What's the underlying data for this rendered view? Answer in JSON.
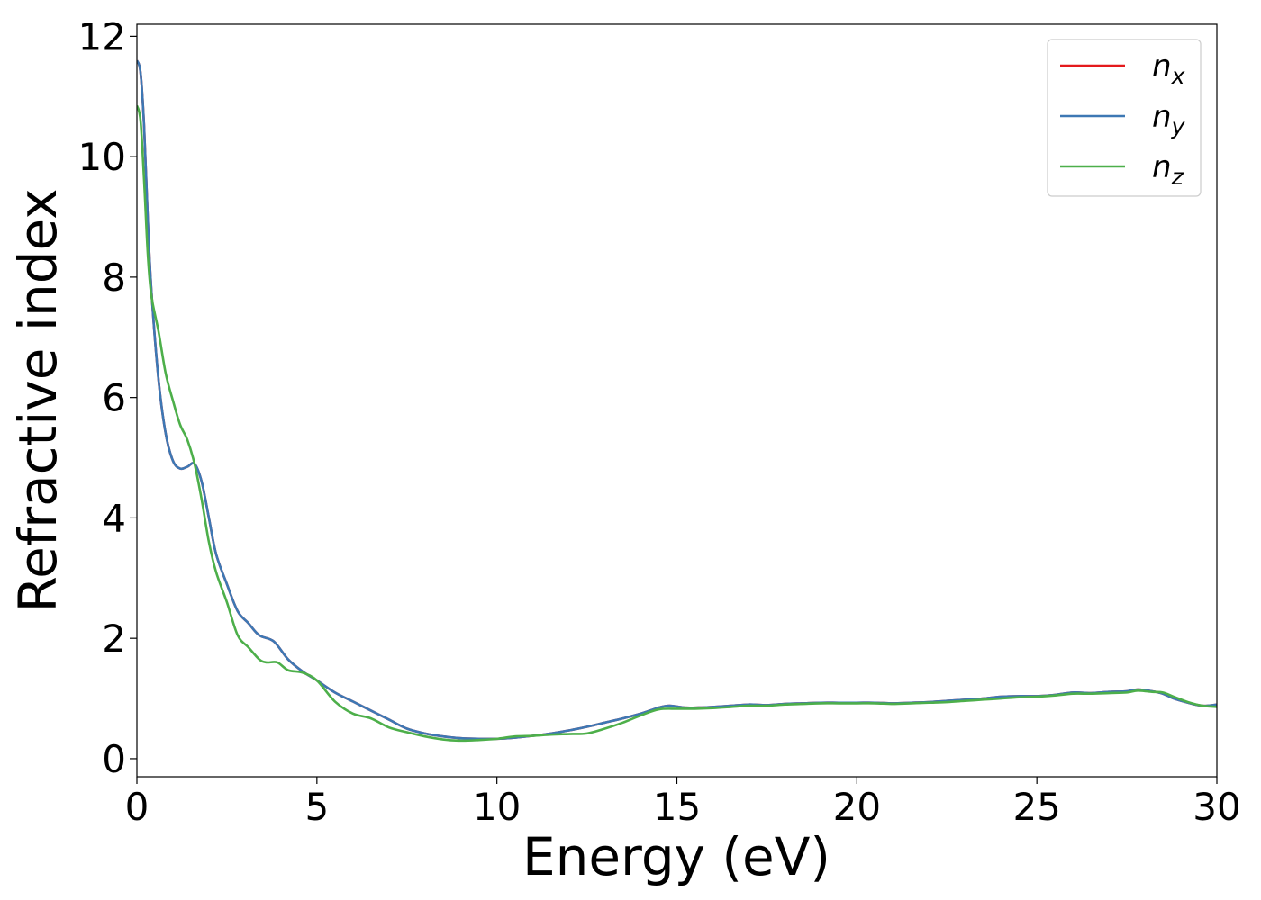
{
  "chart_data": {
    "type": "line",
    "title": "",
    "xlabel": "Energy (eV)",
    "ylabel": "Refractive index",
    "xlim": [
      0,
      30
    ],
    "ylim": [
      -0.3,
      12.2
    ],
    "xticks": [
      0,
      5,
      10,
      15,
      20,
      25,
      30
    ],
    "yticks": [
      0,
      2,
      4,
      6,
      8,
      10,
      12
    ],
    "grid": false,
    "legend_position": "top-right",
    "legend": [
      {
        "base": "n",
        "sub": "x",
        "color": "#e41a1c"
      },
      {
        "base": "n",
        "sub": "y",
        "color": "#3d78b4"
      },
      {
        "base": "n",
        "sub": "z",
        "color": "#4daf4a"
      }
    ],
    "series": [
      {
        "name": "n_x",
        "color": "#e41a1c",
        "x": [
          0,
          0.1,
          0.2,
          0.3,
          0.4,
          0.6,
          0.8,
          1.0,
          1.2,
          1.4,
          1.6,
          1.8,
          2.0,
          2.2,
          2.5,
          2.8,
          3.1,
          3.4,
          3.8,
          4.2,
          4.6,
          5.0,
          5.5,
          6.0,
          6.5,
          7.0,
          7.5,
          8.0,
          8.5,
          9.0,
          9.5,
          10.0,
          10.5,
          11.0,
          11.5,
          12.0,
          12.5,
          13.0,
          13.5,
          14.0,
          14.5,
          14.8,
          15.2,
          15.6,
          16.0,
          16.5,
          17.0,
          17.5,
          18.0,
          18.5,
          19.0,
          19.5,
          20.0,
          20.5,
          21.0,
          21.5,
          22.0,
          22.5,
          23.0,
          23.5,
          24.0,
          24.5,
          25.0,
          25.5,
          26.0,
          26.5,
          27.0,
          27.5,
          27.8,
          28.2,
          28.5,
          28.8,
          29.2,
          29.6,
          30.0
        ],
        "y": [
          11.6,
          11.4,
          10.5,
          9.0,
          7.8,
          6.3,
          5.4,
          4.95,
          4.82,
          4.85,
          4.9,
          4.6,
          4.0,
          3.4,
          2.9,
          2.45,
          2.25,
          2.05,
          1.95,
          1.65,
          1.45,
          1.3,
          1.1,
          0.95,
          0.8,
          0.65,
          0.5,
          0.42,
          0.37,
          0.34,
          0.33,
          0.33,
          0.35,
          0.38,
          0.42,
          0.47,
          0.53,
          0.6,
          0.67,
          0.75,
          0.85,
          0.88,
          0.85,
          0.85,
          0.86,
          0.88,
          0.9,
          0.89,
          0.91,
          0.92,
          0.93,
          0.93,
          0.93,
          0.93,
          0.92,
          0.93,
          0.94,
          0.96,
          0.98,
          1.0,
          1.03,
          1.04,
          1.04,
          1.06,
          1.1,
          1.09,
          1.11,
          1.12,
          1.15,
          1.12,
          1.08,
          1.0,
          0.93,
          0.88,
          0.9
        ]
      },
      {
        "name": "n_y",
        "color": "#3d78b4",
        "x": [
          0,
          0.1,
          0.2,
          0.3,
          0.4,
          0.6,
          0.8,
          1.0,
          1.2,
          1.4,
          1.6,
          1.8,
          2.0,
          2.2,
          2.5,
          2.8,
          3.1,
          3.4,
          3.8,
          4.2,
          4.6,
          5.0,
          5.5,
          6.0,
          6.5,
          7.0,
          7.5,
          8.0,
          8.5,
          9.0,
          9.5,
          10.0,
          10.5,
          11.0,
          11.5,
          12.0,
          12.5,
          13.0,
          13.5,
          14.0,
          14.5,
          14.8,
          15.2,
          15.6,
          16.0,
          16.5,
          17.0,
          17.5,
          18.0,
          18.5,
          19.0,
          19.5,
          20.0,
          20.5,
          21.0,
          21.5,
          22.0,
          22.5,
          23.0,
          23.5,
          24.0,
          24.5,
          25.0,
          25.5,
          26.0,
          26.5,
          27.0,
          27.5,
          27.8,
          28.2,
          28.5,
          28.8,
          29.2,
          29.6,
          30.0
        ],
        "y": [
          11.6,
          11.4,
          10.5,
          9.0,
          7.8,
          6.3,
          5.4,
          4.95,
          4.82,
          4.85,
          4.9,
          4.6,
          4.0,
          3.4,
          2.9,
          2.45,
          2.25,
          2.05,
          1.95,
          1.65,
          1.45,
          1.3,
          1.1,
          0.95,
          0.8,
          0.65,
          0.5,
          0.42,
          0.37,
          0.34,
          0.33,
          0.33,
          0.35,
          0.38,
          0.42,
          0.47,
          0.53,
          0.6,
          0.67,
          0.75,
          0.85,
          0.88,
          0.85,
          0.85,
          0.86,
          0.88,
          0.9,
          0.89,
          0.91,
          0.92,
          0.93,
          0.93,
          0.93,
          0.93,
          0.92,
          0.93,
          0.94,
          0.96,
          0.98,
          1.0,
          1.03,
          1.04,
          1.04,
          1.06,
          1.1,
          1.09,
          1.11,
          1.12,
          1.15,
          1.12,
          1.08,
          1.0,
          0.93,
          0.88,
          0.9
        ]
      },
      {
        "name": "n_z",
        "color": "#4daf4a",
        "x": [
          0,
          0.1,
          0.2,
          0.3,
          0.4,
          0.6,
          0.8,
          1.0,
          1.2,
          1.4,
          1.6,
          1.8,
          2.0,
          2.2,
          2.5,
          2.8,
          3.1,
          3.4,
          3.6,
          3.9,
          4.2,
          4.6,
          5.0,
          5.5,
          6.0,
          6.5,
          7.0,
          7.5,
          8.0,
          8.5,
          9.0,
          9.5,
          10.0,
          10.5,
          11.0,
          11.5,
          12.0,
          12.5,
          13.0,
          13.5,
          14.0,
          14.5,
          15.0,
          15.5,
          16.0,
          16.5,
          17.0,
          17.5,
          18.0,
          18.5,
          19.0,
          19.5,
          20.0,
          20.5,
          21.0,
          21.5,
          22.0,
          22.5,
          23.0,
          23.5,
          24.0,
          24.5,
          25.0,
          25.5,
          26.0,
          26.5,
          27.0,
          27.5,
          27.8,
          28.2,
          28.5,
          28.8,
          29.2,
          29.6,
          30.0
        ],
        "y": [
          10.85,
          10.6,
          9.6,
          8.4,
          7.7,
          7.1,
          6.4,
          5.95,
          5.55,
          5.3,
          4.9,
          4.3,
          3.6,
          3.1,
          2.6,
          2.05,
          1.85,
          1.65,
          1.6,
          1.6,
          1.47,
          1.43,
          1.3,
          0.95,
          0.75,
          0.67,
          0.52,
          0.44,
          0.37,
          0.32,
          0.3,
          0.31,
          0.33,
          0.37,
          0.38,
          0.4,
          0.41,
          0.42,
          0.5,
          0.6,
          0.72,
          0.82,
          0.83,
          0.83,
          0.84,
          0.86,
          0.88,
          0.88,
          0.9,
          0.91,
          0.92,
          0.92,
          0.92,
          0.92,
          0.91,
          0.92,
          0.93,
          0.94,
          0.96,
          0.98,
          1.0,
          1.02,
          1.03,
          1.05,
          1.08,
          1.08,
          1.09,
          1.1,
          1.13,
          1.11,
          1.1,
          1.03,
          0.94,
          0.88,
          0.86
        ]
      }
    ]
  }
}
